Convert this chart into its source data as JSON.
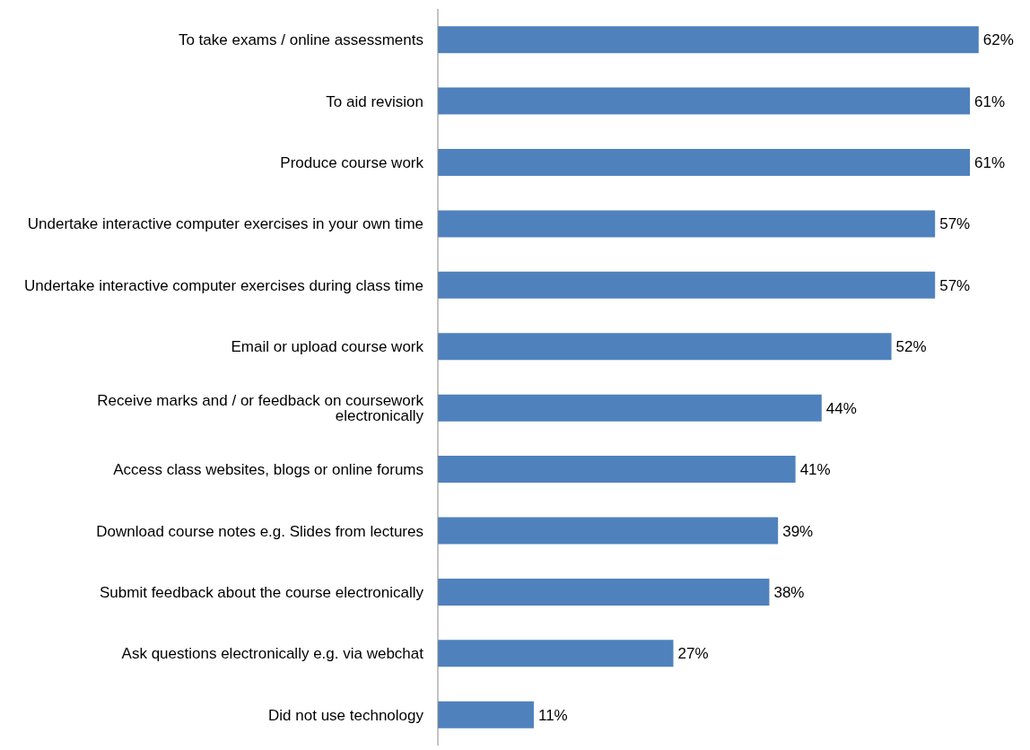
{
  "chart_data": {
    "type": "bar",
    "orientation": "horizontal",
    "categories": [
      "To take exams / online assessments",
      "To aid revision",
      "Produce course work",
      "Undertake interactive computer exercises in your own time",
      "Undertake interactive computer exercises during class time",
      "Email or upload course work",
      "Receive marks and / or feedback on coursework electronically",
      "Access class websites, blogs or online forums",
      "Download course notes e.g. Slides from lectures",
      "Submit feedback about the course electronically",
      "Ask questions electronically e.g. via webchat",
      "Did not use technology"
    ],
    "values": [
      62,
      61,
      61,
      57,
      57,
      52,
      44,
      41,
      39,
      38,
      27,
      11
    ],
    "value_labels": [
      "62%",
      "61%",
      "61%",
      "57%",
      "57%",
      "52%",
      "44%",
      "41%",
      "39%",
      "38%",
      "27%",
      "11%"
    ],
    "color": "#4f81bd",
    "grid": false,
    "legend": false
  }
}
